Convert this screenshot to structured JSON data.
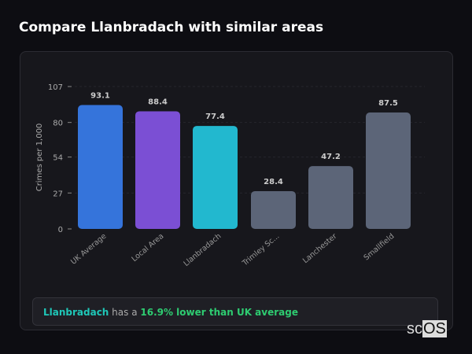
{
  "title": "Compare Llanbradach with similar areas",
  "chart_data": {
    "type": "bar",
    "categories": [
      "UK Average",
      "Local Area",
      "Llanbradach",
      "Trimley Sc...",
      "Lanchester",
      "Smallfield"
    ],
    "values": [
      93.1,
      88.4,
      77.4,
      28.4,
      47.2,
      87.5
    ],
    "colors": [
      "#3574db",
      "#7b4fd4",
      "#22b8cf",
      "#5c6578",
      "#5c6578",
      "#5c6578"
    ],
    "ylabel": "Crimes per 1,000",
    "yticks": [
      0,
      27,
      54,
      80,
      107
    ],
    "ylim": [
      0,
      107
    ]
  },
  "summary": {
    "place": "Llanbradach",
    "middle": " has a ",
    "stat": "16.9% lower than UK average"
  },
  "logo": {
    "prefix": "sc",
    "boxed": "OS"
  }
}
